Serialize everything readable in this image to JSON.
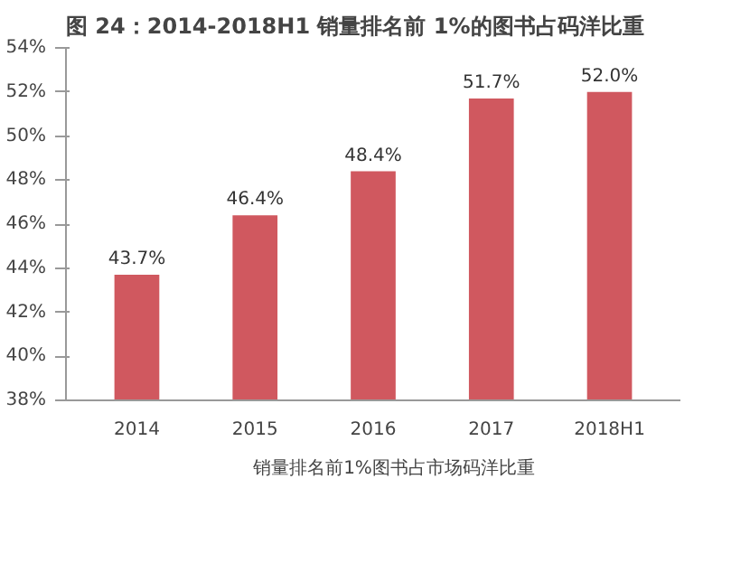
{
  "chart_data": {
    "type": "bar",
    "title": "图 24：2014-2018H1 销量排名前 1%的图书占码洋比重",
    "categories": [
      "2014",
      "2015",
      "2016",
      "2017",
      "2018H1"
    ],
    "series": [
      {
        "name": "销量排名前1%图书占市场码洋比重",
        "color": "#d0585f",
        "values": [
          43.7,
          46.4,
          48.4,
          51.7,
          52.0
        ],
        "value_labels": [
          "43.7%",
          "46.4%",
          "48.4%",
          "51.7%",
          "52.0%"
        ]
      }
    ],
    "ylim": [
      38,
      54
    ],
    "yticks": [
      {
        "value": 38,
        "label": "38%"
      },
      {
        "value": 40,
        "label": "40%"
      },
      {
        "value": 42,
        "label": "42%"
      },
      {
        "value": 44,
        "label": "44%"
      },
      {
        "value": 46,
        "label": "46%"
      },
      {
        "value": 48,
        "label": "48%"
      },
      {
        "value": 50,
        "label": "50%"
      },
      {
        "value": 52,
        "label": "52%"
      },
      {
        "value": 54,
        "label": "54%"
      }
    ],
    "grid": false,
    "legend": "bottom"
  }
}
